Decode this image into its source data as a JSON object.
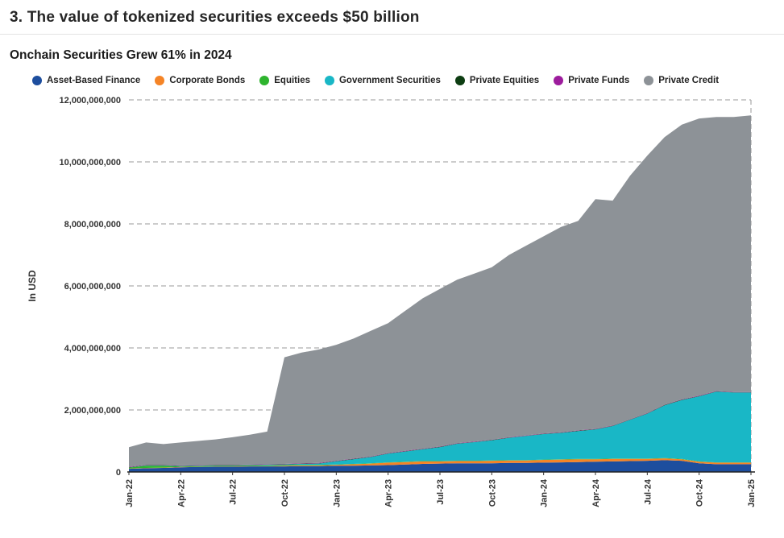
{
  "header": {
    "title": "3. The value of tokenized securities exceeds $50 billion",
    "subtitle": "Onchain Securities Grew 61% in 2024"
  },
  "chart_data": {
    "type": "area",
    "stacked": true,
    "unit": "USD",
    "values_in": "billions of USD",
    "title": "Onchain Securities Grew 61% in 2024",
    "xlabel": "",
    "ylabel": "In USD",
    "ylim_billions": [
      0,
      12
    ],
    "grid": "dashed horizontal lines, dashed vertical line at right edge",
    "legend_position": "top",
    "y_tick_values_billions": [
      0,
      2,
      4,
      6,
      8,
      10,
      12
    ],
    "y_tick_labels": [
      "0",
      "2,000,000,000",
      "4,000,000,000",
      "6,000,000,000",
      "8,000,000,000",
      "10,000,000,000",
      "12,000,000,000"
    ],
    "x": [
      "Jan-22",
      "Feb-22",
      "Mar-22",
      "Apr-22",
      "May-22",
      "Jun-22",
      "Jul-22",
      "Aug-22",
      "Sep-22",
      "Oct-22",
      "Nov-22",
      "Dec-22",
      "Jan-23",
      "Feb-23",
      "Mar-23",
      "Apr-23",
      "May-23",
      "Jun-23",
      "Jul-23",
      "Aug-23",
      "Sep-23",
      "Oct-23",
      "Nov-23",
      "Dec-23",
      "Jan-24",
      "Feb-24",
      "Mar-24",
      "Apr-24",
      "May-24",
      "Jun-24",
      "Jul-24",
      "Aug-24",
      "Sep-24",
      "Oct-24",
      "Nov-24",
      "Dec-24",
      "Jan-25"
    ],
    "x_tick_labels": [
      "Jan-22",
      "Apr-22",
      "Jul-22",
      "Oct-22",
      "Jan-23",
      "Apr-23",
      "Jul-23",
      "Oct-23",
      "Jan-24",
      "Apr-24",
      "Jul-24",
      "Oct-24",
      "Jan-25"
    ],
    "series": [
      {
        "name": "Asset-Based Finance",
        "color": "#1d4e9e",
        "values": [
          0.1,
          0.12,
          0.13,
          0.15,
          0.16,
          0.17,
          0.17,
          0.18,
          0.18,
          0.18,
          0.19,
          0.19,
          0.2,
          0.2,
          0.21,
          0.22,
          0.24,
          0.26,
          0.27,
          0.28,
          0.28,
          0.28,
          0.29,
          0.29,
          0.3,
          0.31,
          0.32,
          0.33,
          0.34,
          0.35,
          0.36,
          0.38,
          0.36,
          0.28,
          0.25,
          0.25,
          0.25
        ]
      },
      {
        "name": "Corporate Bonds",
        "color": "#f58426",
        "values": [
          0.01,
          0.01,
          0.01,
          0.01,
          0.01,
          0.01,
          0.01,
          0.01,
          0.01,
          0.02,
          0.02,
          0.02,
          0.03,
          0.05,
          0.06,
          0.08,
          0.08,
          0.08,
          0.07,
          0.07,
          0.07,
          0.08,
          0.08,
          0.08,
          0.09,
          0.09,
          0.09,
          0.08,
          0.08,
          0.07,
          0.06,
          0.06,
          0.05,
          0.05,
          0.05,
          0.05,
          0.05
        ]
      },
      {
        "name": "Equities",
        "color": "#2eb42e",
        "values": [
          0.03,
          0.07,
          0.06,
          0.02,
          0.02,
          0.02,
          0.02,
          0.02,
          0.02,
          0.02,
          0.02,
          0.02,
          0.01,
          0.01,
          0.01,
          0.01,
          0.01,
          0.01,
          0.01,
          0.01,
          0.01,
          0.01,
          0.01,
          0.01,
          0.01,
          0.01,
          0.01,
          0.01,
          0.01,
          0.01,
          0.01,
          0.01,
          0.01,
          0.01,
          0.01,
          0.01,
          0.01
        ]
      },
      {
        "name": "Government Securities",
        "color": "#19b7c6",
        "values": [
          0.0,
          0.01,
          0.01,
          0.01,
          0.01,
          0.01,
          0.01,
          0.01,
          0.02,
          0.02,
          0.03,
          0.04,
          0.1,
          0.15,
          0.2,
          0.28,
          0.33,
          0.38,
          0.45,
          0.55,
          0.6,
          0.65,
          0.72,
          0.78,
          0.82,
          0.85,
          0.9,
          0.95,
          1.05,
          1.25,
          1.45,
          1.7,
          1.9,
          2.1,
          2.28,
          2.25,
          2.25
        ]
      },
      {
        "name": "Private Equities",
        "color": "#0d3d12",
        "values": [
          0.01,
          0.01,
          0.01,
          0.01,
          0.01,
          0.01,
          0.01,
          0.01,
          0.01,
          0.01,
          0.01,
          0.01,
          0.01,
          0.01,
          0.01,
          0.01,
          0.01,
          0.01,
          0.01,
          0.01,
          0.01,
          0.01,
          0.01,
          0.01,
          0.01,
          0.01,
          0.01,
          0.01,
          0.01,
          0.01,
          0.01,
          0.01,
          0.01,
          0.01,
          0.01,
          0.01,
          0.01
        ]
      },
      {
        "name": "Private Funds",
        "color": "#9d1c9d",
        "values": [
          0.01,
          0.01,
          0.01,
          0.01,
          0.01,
          0.01,
          0.01,
          0.01,
          0.01,
          0.01,
          0.01,
          0.01,
          0.01,
          0.01,
          0.01,
          0.01,
          0.01,
          0.01,
          0.01,
          0.01,
          0.01,
          0.01,
          0.01,
          0.01,
          0.01,
          0.01,
          0.01,
          0.01,
          0.01,
          0.01,
          0.01,
          0.01,
          0.01,
          0.01,
          0.01,
          0.01,
          0.01
        ]
      },
      {
        "name": "Private Credit",
        "color": "#8d9297",
        "values": [
          0.64,
          0.72,
          0.67,
          0.74,
          0.78,
          0.82,
          0.89,
          0.96,
          1.05,
          3.44,
          3.57,
          3.66,
          3.74,
          3.87,
          4.05,
          4.19,
          4.52,
          4.85,
          5.08,
          5.27,
          5.42,
          5.56,
          5.88,
          6.12,
          6.36,
          6.62,
          6.76,
          7.41,
          7.25,
          7.85,
          8.3,
          8.63,
          8.86,
          8.94,
          8.84,
          8.87,
          8.92
        ]
      }
    ]
  }
}
